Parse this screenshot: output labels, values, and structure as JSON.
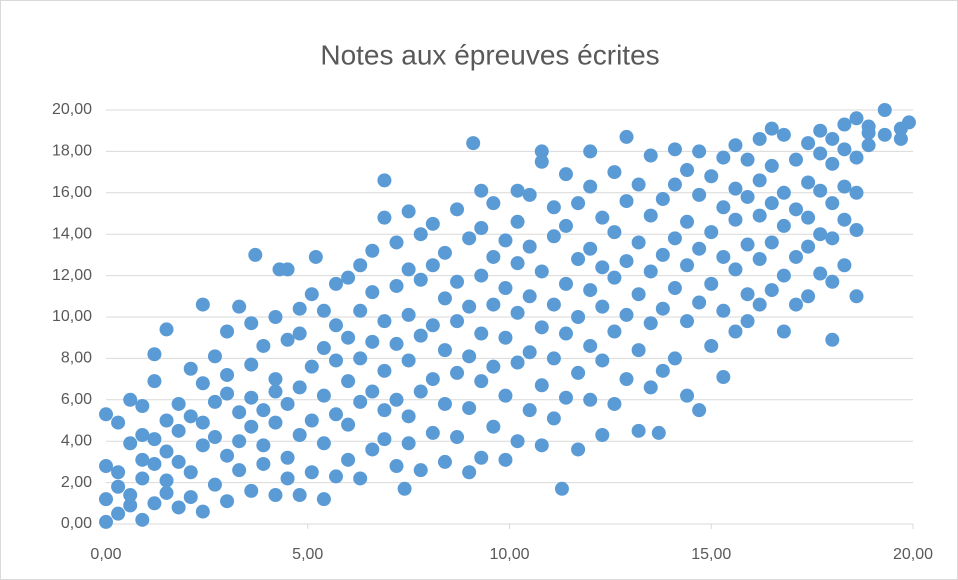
{
  "chart_data": {
    "type": "scatter",
    "title": "Notes aux épreuves écrites",
    "color": "#5b9bd5",
    "grid": true,
    "xlim": [
      0,
      20
    ],
    "ylim": [
      0,
      20
    ],
    "xticks": [
      {
        "value": 0,
        "label": "0,00"
      },
      {
        "value": 5,
        "label": "5,00"
      },
      {
        "value": 10,
        "label": "10,00"
      },
      {
        "value": 15,
        "label": "15,00"
      },
      {
        "value": 20,
        "label": "20,00"
      }
    ],
    "yticks": [
      {
        "value": 0,
        "label": "0,00"
      },
      {
        "value": 2,
        "label": "2,00"
      },
      {
        "value": 4,
        "label": "4,00"
      },
      {
        "value": 6,
        "label": "6,00"
      },
      {
        "value": 8,
        "label": "8,00"
      },
      {
        "value": 10,
        "label": "10,00"
      },
      {
        "value": 12,
        "label": "12,00"
      },
      {
        "value": 14,
        "label": "14,00"
      },
      {
        "value": 16,
        "label": "16,00"
      },
      {
        "value": 18,
        "label": "18,00"
      },
      {
        "value": 20,
        "label": "20,00"
      }
    ],
    "x": [
      0.0,
      0.0,
      0.0,
      0.0,
      0.3,
      0.3,
      0.3,
      0.3,
      0.6,
      0.6,
      0.6,
      0.6,
      0.9,
      0.9,
      0.9,
      0.9,
      0.9,
      1.2,
      1.2,
      1.2,
      1.2,
      1.2,
      1.5,
      1.5,
      1.5,
      1.5,
      1.5,
      1.8,
      1.8,
      1.8,
      1.8,
      2.1,
      2.1,
      2.1,
      2.1,
      2.4,
      2.4,
      2.4,
      2.4,
      2.4,
      2.7,
      2.7,
      2.7,
      2.7,
      3.0,
      3.0,
      3.0,
      3.0,
      3.0,
      3.3,
      3.3,
      3.3,
      3.3,
      3.6,
      3.6,
      3.6,
      3.6,
      3.6,
      3.7,
      3.9,
      3.9,
      3.9,
      3.9,
      4.2,
      4.2,
      4.2,
      4.2,
      4.2,
      4.3,
      4.5,
      4.5,
      4.5,
      4.5,
      4.5,
      4.8,
      4.8,
      4.8,
      4.8,
      4.8,
      5.1,
      5.1,
      5.1,
      5.1,
      5.2,
      5.4,
      5.4,
      5.4,
      5.4,
      5.4,
      5.7,
      5.7,
      5.7,
      5.7,
      5.7,
      6.0,
      6.0,
      6.0,
      6.0,
      6.0,
      6.3,
      6.3,
      6.3,
      6.3,
      6.3,
      6.6,
      6.6,
      6.6,
      6.6,
      6.6,
      6.9,
      6.9,
      6.9,
      6.9,
      6.9,
      6.9,
      7.2,
      7.2,
      7.2,
      7.2,
      7.2,
      7.4,
      7.5,
      7.5,
      7.5,
      7.5,
      7.5,
      7.5,
      7.8,
      7.8,
      7.8,
      7.8,
      7.8,
      8.1,
      8.1,
      8.1,
      8.1,
      8.1,
      8.4,
      8.4,
      8.4,
      8.4,
      8.4,
      8.7,
      8.7,
      8.7,
      8.7,
      8.7,
      9.0,
      9.0,
      9.0,
      9.0,
      9.0,
      9.1,
      9.3,
      9.3,
      9.3,
      9.3,
      9.3,
      9.3,
      9.6,
      9.6,
      9.6,
      9.6,
      9.6,
      9.9,
      9.9,
      9.9,
      9.9,
      9.9,
      10.2,
      10.2,
      10.2,
      10.2,
      10.2,
      10.2,
      10.5,
      10.5,
      10.5,
      10.5,
      10.5,
      10.8,
      10.8,
      10.8,
      10.8,
      10.8,
      10.8,
      11.1,
      11.1,
      11.1,
      11.1,
      11.1,
      11.3,
      11.4,
      11.4,
      11.4,
      11.4,
      11.4,
      11.7,
      11.7,
      11.7,
      11.7,
      11.7,
      12.0,
      12.0,
      12.0,
      12.0,
      12.0,
      12.0,
      12.3,
      12.3,
      12.3,
      12.3,
      12.3,
      12.6,
      12.6,
      12.6,
      12.6,
      12.6,
      12.9,
      12.9,
      12.9,
      12.9,
      12.9,
      13.2,
      13.2,
      13.2,
      13.2,
      13.2,
      13.5,
      13.5,
      13.5,
      13.5,
      13.5,
      13.7,
      13.8,
      13.8,
      13.8,
      13.8,
      14.1,
      14.1,
      14.1,
      14.1,
      14.1,
      14.4,
      14.4,
      14.4,
      14.4,
      14.4,
      14.7,
      14.7,
      14.7,
      14.7,
      14.7,
      15.0,
      15.0,
      15.0,
      15.0,
      15.3,
      15.3,
      15.3,
      15.3,
      15.3,
      15.6,
      15.6,
      15.6,
      15.6,
      15.6,
      15.9,
      15.9,
      15.9,
      15.9,
      15.9,
      16.2,
      16.2,
      16.2,
      16.2,
      16.2,
      16.5,
      16.5,
      16.5,
      16.5,
      16.5,
      16.8,
      16.8,
      16.8,
      16.8,
      16.8,
      17.1,
      17.1,
      17.1,
      17.1,
      17.4,
      17.4,
      17.4,
      17.4,
      17.4,
      17.7,
      17.7,
      17.7,
      17.7,
      17.7,
      18.0,
      18.0,
      18.0,
      18.0,
      18.0,
      18.0,
      18.3,
      18.3,
      18.3,
      18.3,
      18.3,
      18.6,
      18.6,
      18.6,
      18.6,
      18.6,
      18.9,
      18.9,
      18.9,
      19.3,
      19.3,
      19.7,
      19.7,
      19.9
    ],
    "values": [
      0.1,
      1.2,
      2.8,
      5.3,
      0.5,
      1.8,
      2.5,
      4.9,
      0.9,
      3.9,
      6.0,
      1.4,
      0.2,
      2.2,
      4.3,
      5.7,
      3.1,
      1.0,
      2.9,
      6.9,
      8.2,
      4.1,
      1.5,
      3.5,
      5.0,
      9.4,
      2.1,
      0.8,
      4.5,
      5.8,
      3.0,
      2.5,
      5.2,
      7.5,
      1.3,
      0.6,
      3.8,
      6.8,
      10.6,
      4.9,
      1.9,
      4.2,
      8.1,
      5.9,
      1.1,
      3.3,
      6.3,
      9.3,
      7.2,
      2.6,
      5.4,
      10.5,
      4.0,
      1.6,
      4.7,
      7.7,
      9.7,
      6.1,
      13.0,
      2.9,
      5.5,
      8.6,
      3.8,
      1.4,
      4.9,
      7.0,
      10.0,
      6.4,
      12.3,
      3.2,
      5.8,
      8.9,
      12.3,
      2.2,
      1.4,
      4.3,
      6.6,
      9.2,
      10.4,
      2.5,
      5.0,
      7.6,
      11.1,
      12.9,
      1.2,
      3.9,
      6.2,
      8.5,
      10.3,
      2.3,
      5.3,
      7.9,
      9.6,
      11.6,
      3.1,
      4.8,
      6.9,
      9.0,
      11.9,
      2.2,
      5.9,
      8.0,
      10.3,
      12.5,
      3.6,
      6.4,
      8.8,
      11.2,
      13.2,
      4.1,
      5.5,
      7.4,
      9.8,
      16.6,
      14.8,
      2.8,
      6.0,
      8.7,
      11.5,
      13.6,
      1.7,
      3.9,
      5.2,
      7.9,
      10.1,
      12.3,
      15.1,
      2.6,
      6.4,
      9.1,
      11.8,
      14.0,
      4.4,
      7.0,
      9.6,
      12.5,
      14.5,
      3.0,
      5.8,
      8.4,
      10.9,
      13.1,
      4.2,
      7.3,
      9.8,
      11.7,
      15.2,
      2.5,
      5.6,
      8.1,
      10.5,
      13.8,
      18.4,
      3.2,
      6.9,
      9.2,
      12.0,
      14.3,
      16.1,
      4.7,
      7.6,
      10.6,
      12.9,
      15.5,
      3.1,
      6.2,
      9.0,
      11.4,
      13.7,
      4.0,
      7.8,
      10.2,
      12.6,
      14.6,
      16.1,
      5.5,
      8.3,
      11.0,
      13.4,
      15.9,
      3.8,
      6.7,
      9.5,
      12.2,
      17.5,
      18.0,
      5.1,
      8.0,
      10.6,
      13.9,
      15.3,
      1.7,
      6.1,
      9.2,
      11.6,
      14.4,
      16.9,
      3.6,
      7.3,
      10.0,
      12.8,
      15.5,
      6.0,
      8.6,
      11.3,
      13.3,
      16.3,
      18.0,
      4.3,
      7.9,
      10.5,
      12.4,
      14.8,
      5.8,
      9.3,
      11.9,
      14.1,
      17.0,
      7.0,
      10.1,
      12.7,
      15.6,
      18.7,
      4.5,
      8.4,
      11.1,
      13.6,
      16.4,
      6.6,
      9.7,
      12.2,
      14.9,
      17.8,
      4.4,
      7.4,
      10.4,
      13.0,
      15.7,
      8.0,
      11.4,
      13.8,
      16.4,
      18.1,
      6.2,
      9.8,
      12.5,
      14.6,
      17.1,
      5.5,
      10.7,
      13.3,
      15.9,
      18.0,
      8.6,
      11.6,
      14.1,
      16.8,
      7.1,
      10.3,
      12.9,
      15.3,
      17.7,
      9.3,
      12.3,
      14.7,
      16.2,
      18.3,
      9.8,
      11.1,
      13.5,
      15.8,
      17.6,
      10.6,
      12.8,
      14.9,
      16.6,
      18.6,
      11.3,
      13.6,
      15.5,
      17.3,
      19.1,
      9.3,
      12.0,
      14.4,
      16.0,
      18.8,
      10.6,
      12.9,
      15.2,
      17.6,
      11.0,
      13.4,
      14.8,
      16.5,
      18.4,
      12.1,
      14.0,
      16.1,
      17.9,
      19.0,
      8.9,
      11.7,
      13.8,
      15.5,
      17.4,
      18.6,
      12.5,
      14.7,
      16.3,
      18.1,
      19.3,
      11.0,
      14.2,
      16.0,
      17.7,
      19.6,
      18.3,
      18.9,
      19.2,
      20.0,
      18.8,
      18.6,
      19.1,
      19.4
    ]
  }
}
